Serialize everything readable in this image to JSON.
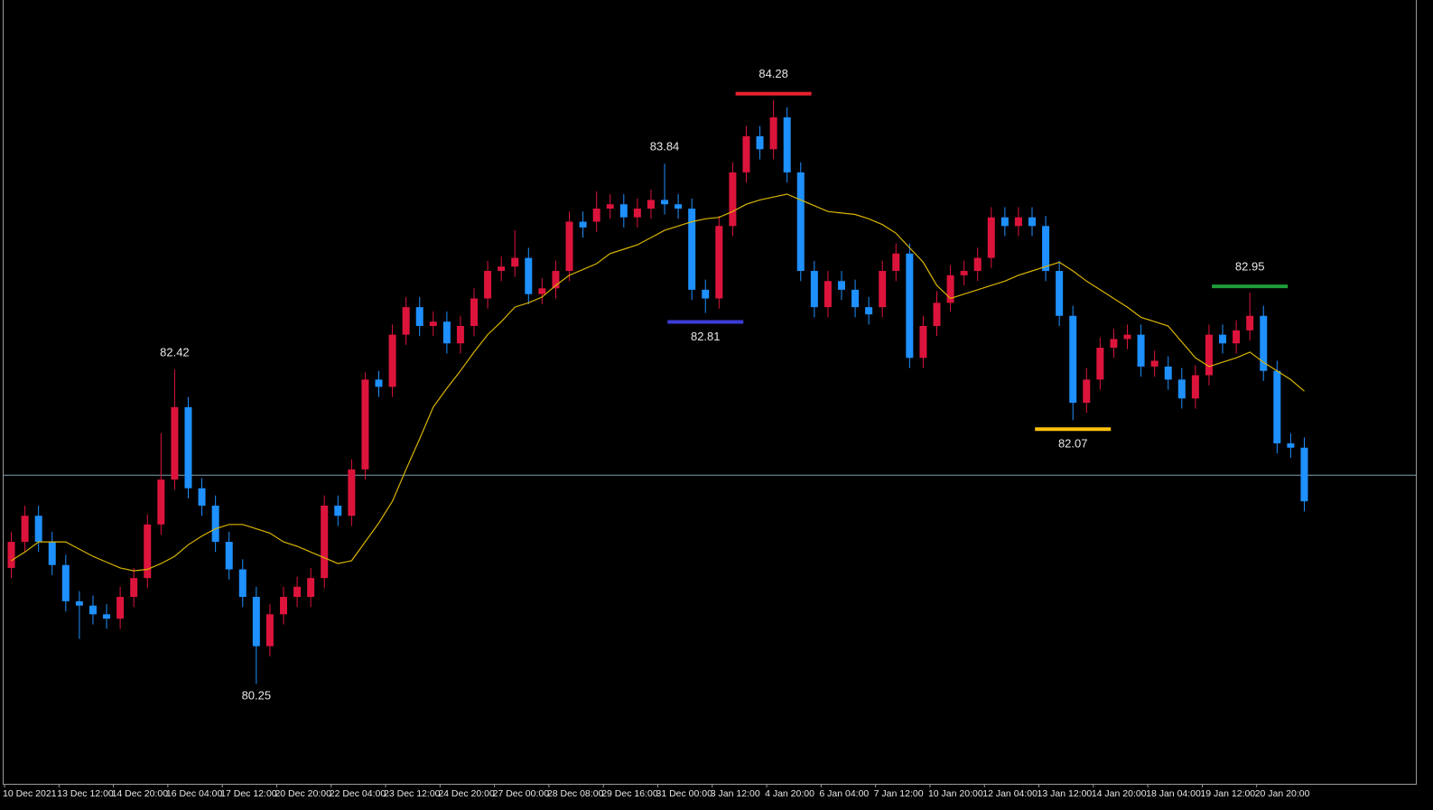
{
  "chart_data": {
    "type": "candlestick",
    "up_color": "#dc143c",
    "down_color": "#1e90ff",
    "categories": [
      "10 Dec 2021",
      null,
      null,
      null,
      "13 Dec 12:00",
      null,
      null,
      null,
      "14 Dec 20:00",
      null,
      null,
      null,
      "16 Dec 04:00",
      null,
      null,
      null,
      "17 Dec 12:00",
      null,
      null,
      null,
      "20 Dec 20:00",
      null,
      null,
      null,
      "22 Dec 04:00",
      null,
      null,
      null,
      "23 Dec 12:00",
      null,
      null,
      null,
      "24 Dec 20:00",
      null,
      null,
      null,
      "27 Dec 00:00",
      null,
      null,
      null,
      "28 Dec 08:00",
      null,
      null,
      null,
      "29 Dec 16:00",
      null,
      null,
      null,
      "31 Dec 00:00",
      null,
      null,
      null,
      "3 Jan 12:00",
      null,
      null,
      null,
      "4 Jan 20:00",
      null,
      null,
      null,
      "6 Jan 04:00",
      null,
      null,
      null,
      "7 Jan 12:00",
      null,
      null,
      null,
      "10 Jan 20:00",
      null,
      null,
      null,
      "12 Jan 04:00",
      null,
      null,
      null,
      "13 Jan 12:00",
      null,
      null,
      null,
      "14 Jan 20:00",
      null,
      null,
      null,
      "18 Jan 04:00",
      null,
      null,
      null,
      "19 Jan 12:00",
      null,
      null,
      null,
      "20 Jan 20:00",
      null,
      null,
      null
    ],
    "open": [
      81.05,
      81.23,
      81.41,
      81.23,
      81.07,
      80.82,
      80.79,
      80.73,
      80.7,
      80.85,
      80.98,
      81.35,
      81.66,
      82.16,
      81.6,
      81.48,
      81.23,
      81.04,
      80.85,
      80.51,
      80.73,
      80.85,
      80.85,
      80.98,
      81.48,
      81.41,
      81.73,
      82.35,
      82.3,
      82.66,
      82.85,
      82.72,
      82.75,
      82.6,
      82.72,
      82.91,
      83.1,
      83.13,
      83.19,
      82.94,
      82.98,
      83.1,
      83.44,
      83.44,
      83.53,
      83.56,
      83.47,
      83.53,
      83.59,
      83.56,
      83.53,
      82.97,
      82.91,
      83.41,
      83.78,
      84.03,
      83.94,
      84.16,
      83.78,
      83.1,
      82.85,
      83.03,
      82.97,
      82.85,
      82.85,
      83.1,
      83.22,
      82.5,
      82.72,
      82.88,
      83.07,
      83.1,
      83.19,
      83.47,
      83.41,
      83.47,
      83.41,
      83.1,
      82.79,
      82.19,
      82.35,
      82.57,
      82.63,
      82.66,
      82.44,
      82.44,
      82.35,
      82.22,
      82.38,
      82.66,
      82.6,
      82.69,
      82.79,
      82.41,
      81.91,
      81.88
    ],
    "high": [
      81.3,
      81.48,
      81.48,
      81.3,
      81.14,
      80.89,
      80.86,
      80.8,
      80.92,
      81.05,
      81.42,
      81.98,
      82.42,
      82.23,
      81.67,
      81.55,
      81.3,
      81.11,
      80.92,
      80.8,
      80.92,
      80.99,
      81.05,
      81.55,
      81.55,
      81.8,
      82.4,
      82.41,
      82.73,
      82.92,
      82.92,
      82.82,
      82.82,
      82.79,
      82.98,
      83.17,
      83.2,
      83.38,
      83.26,
      83.05,
      83.17,
      83.51,
      83.51,
      83.65,
      83.63,
      83.63,
      83.6,
      83.66,
      83.84,
      83.63,
      83.6,
      83.04,
      83.48,
      83.85,
      84.1,
      84.1,
      84.28,
      84.23,
      83.85,
      83.17,
      83.1,
      83.1,
      83.04,
      82.92,
      83.17,
      83.29,
      83.29,
      82.79,
      82.96,
      83.14,
      83.17,
      83.26,
      83.54,
      83.54,
      83.54,
      83.54,
      83.48,
      83.17,
      82.86,
      82.43,
      82.64,
      82.7,
      82.73,
      82.73,
      82.55,
      82.51,
      82.43,
      82.45,
      82.73,
      82.73,
      82.76,
      82.95,
      82.86,
      82.48,
      81.98,
      81.95
    ],
    "low": [
      80.98,
      81.16,
      81.16,
      81.0,
      80.75,
      80.56,
      80.66,
      80.63,
      80.63,
      80.78,
      80.91,
      81.28,
      81.59,
      81.53,
      81.41,
      81.16,
      80.97,
      80.78,
      80.25,
      80.44,
      80.66,
      80.78,
      80.78,
      80.91,
      81.34,
      81.34,
      81.66,
      82.23,
      82.23,
      82.59,
      82.65,
      82.65,
      82.53,
      82.53,
      82.65,
      82.84,
      83.03,
      83.06,
      82.87,
      82.87,
      82.91,
      83.03,
      83.33,
      83.37,
      83.46,
      83.4,
      83.4,
      83.46,
      83.49,
      83.46,
      82.9,
      82.81,
      82.84,
      83.34,
      83.71,
      83.87,
      83.87,
      83.71,
      83.03,
      82.78,
      82.78,
      82.9,
      82.78,
      82.73,
      82.78,
      83.03,
      82.43,
      82.43,
      82.65,
      82.82,
      83.0,
      83.03,
      83.12,
      83.34,
      83.34,
      83.34,
      83.03,
      82.72,
      82.07,
      82.12,
      82.28,
      82.5,
      82.56,
      82.37,
      82.37,
      82.28,
      82.15,
      82.15,
      82.31,
      82.53,
      82.53,
      82.62,
      82.34,
      81.84,
      81.81,
      81.44
    ],
    "close": [
      81.23,
      81.41,
      81.23,
      81.07,
      80.82,
      80.79,
      80.73,
      80.7,
      80.85,
      80.98,
      81.35,
      81.66,
      82.16,
      81.6,
      81.48,
      81.23,
      81.04,
      80.85,
      80.51,
      80.73,
      80.85,
      80.92,
      80.98,
      81.48,
      81.41,
      81.73,
      82.35,
      82.3,
      82.66,
      82.85,
      82.72,
      82.75,
      82.6,
      82.72,
      82.91,
      83.1,
      83.13,
      83.19,
      82.94,
      82.98,
      83.1,
      83.44,
      83.4,
      83.53,
      83.56,
      83.47,
      83.53,
      83.59,
      83.56,
      83.53,
      82.97,
      82.91,
      83.41,
      83.78,
      84.03,
      83.94,
      84.16,
      83.78,
      83.1,
      82.85,
      83.03,
      82.97,
      82.85,
      82.8,
      83.1,
      83.22,
      82.5,
      82.72,
      82.88,
      83.07,
      83.1,
      83.19,
      83.47,
      83.41,
      83.47,
      83.41,
      83.1,
      82.79,
      82.19,
      82.35,
      82.57,
      82.63,
      82.66,
      82.44,
      82.48,
      82.35,
      82.22,
      82.38,
      82.66,
      82.6,
      82.69,
      82.79,
      82.41,
      81.91,
      81.88,
      81.51
    ],
    "ma": {
      "color": "#d8b400",
      "values": [
        81.1,
        81.16,
        81.23,
        81.23,
        81.23,
        81.18,
        81.13,
        81.09,
        81.05,
        81.03,
        81.04,
        81.08,
        81.13,
        81.21,
        81.27,
        81.32,
        81.35,
        81.35,
        81.32,
        81.29,
        81.23,
        81.2,
        81.16,
        81.12,
        81.08,
        81.1,
        81.23,
        81.36,
        81.51,
        81.73,
        81.94,
        82.16,
        82.29,
        82.41,
        82.54,
        82.66,
        82.75,
        82.85,
        82.88,
        82.92,
        83.0,
        83.07,
        83.11,
        83.15,
        83.22,
        83.25,
        83.28,
        83.33,
        83.38,
        83.41,
        83.44,
        83.46,
        83.47,
        83.51,
        83.56,
        83.59,
        83.61,
        83.63,
        83.59,
        83.55,
        83.51,
        83.5,
        83.49,
        83.46,
        83.42,
        83.36,
        83.26,
        83.16,
        83.0,
        82.91,
        82.94,
        82.97,
        83.0,
        83.03,
        83.07,
        83.1,
        83.13,
        83.16,
        83.1,
        83.03,
        82.97,
        82.91,
        82.85,
        82.78,
        82.75,
        82.72,
        82.61,
        82.5,
        82.44,
        82.47,
        82.5,
        82.54,
        82.47,
        82.41,
        82.35,
        82.27
      ]
    },
    "hline": {
      "value": 81.69,
      "color": "#7f9fb0"
    },
    "ylim": [
      79.56,
      84.97
    ],
    "annotations": [
      {
        "value": 82.42,
        "at": "high"
      },
      {
        "value": 80.25,
        "at": "low"
      },
      {
        "value": 83.84,
        "at": "high"
      },
      {
        "value": 82.81,
        "at": "low",
        "color": "#3c3cd8"
      },
      {
        "value": 84.28,
        "at": "high",
        "color": "#e8222f"
      },
      {
        "value": 82.07,
        "at": "low",
        "color": "#ffc20e"
      },
      {
        "value": 82.95,
        "at": "high",
        "color": "#1f9d3a"
      }
    ]
  }
}
